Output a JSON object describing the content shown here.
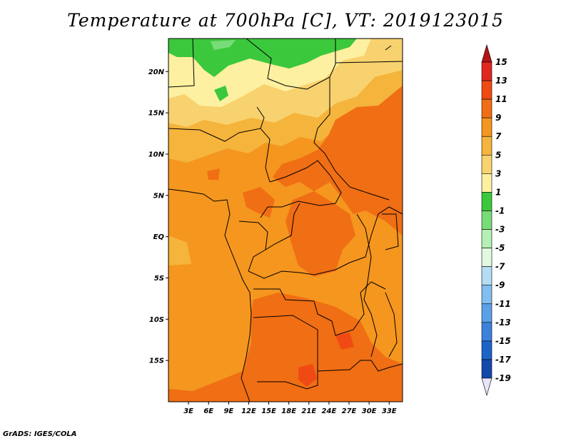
{
  "title": "Temperature at 700hPa [C], VT: 2019123015",
  "credit": "GrADS: IGES/COLA",
  "map": {
    "lon_range": [
      0,
      35
    ],
    "lat_range": [
      -20,
      24
    ],
    "lat_ticks": [
      {
        "value": 20,
        "label": "20N"
      },
      {
        "value": 15,
        "label": "15N"
      },
      {
        "value": 10,
        "label": "10N"
      },
      {
        "value": 5,
        "label": "5N"
      },
      {
        "value": 0,
        "label": "EQ"
      },
      {
        "value": -5,
        "label": "5S"
      },
      {
        "value": -10,
        "label": "10S"
      },
      {
        "value": -15,
        "label": "15S"
      }
    ],
    "lon_ticks": [
      {
        "value": 3,
        "label": "3E"
      },
      {
        "value": 6,
        "label": "6E"
      },
      {
        "value": 9,
        "label": "9E"
      },
      {
        "value": 12,
        "label": "12E"
      },
      {
        "value": 15,
        "label": "15E"
      },
      {
        "value": 18,
        "label": "18E"
      },
      {
        "value": 21,
        "label": "21E"
      },
      {
        "value": 24,
        "label": "24E"
      },
      {
        "value": 27,
        "label": "27E"
      },
      {
        "value": 30,
        "label": "30E"
      },
      {
        "value": 33,
        "label": "33E"
      }
    ]
  },
  "colorbar": {
    "labels": [
      "15",
      "13",
      "11",
      "9",
      "7",
      "5",
      "3",
      "1",
      "-1",
      "-3",
      "-5",
      "-7",
      "-9",
      "-11",
      "-13",
      "-15",
      "-17",
      "-19"
    ],
    "colors": [
      "#e0281e",
      "#f04a14",
      "#f06e14",
      "#f5961e",
      "#f5b43c",
      "#f8d26e",
      "#fdf0a0",
      "#3cc83c",
      "#78dc78",
      "#b4f0b4",
      "#e1f8e1",
      "#b4dcf5",
      "#82beef",
      "#5aa0e6",
      "#3c82dc",
      "#1e64c8",
      "#1448aa",
      "#0a1e78"
    ],
    "upper_arrow_color": "#b41414",
    "lower_arrow_color": "#e6e6fa"
  }
}
